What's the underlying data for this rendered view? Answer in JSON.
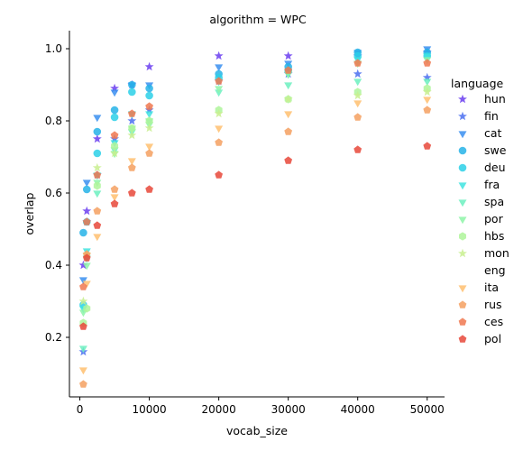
{
  "chart_data": {
    "type": "scatter",
    "facet_title": "algorithm = WPC",
    "xlabel": "vocab_size",
    "ylabel": "overlap",
    "xlim": [
      -1500,
      52500
    ],
    "ylim": [
      0.035,
      1.05
    ],
    "xticks": [
      0,
      10000,
      20000,
      30000,
      40000,
      50000
    ],
    "yticks": [
      0.2,
      0.4,
      0.6,
      0.8,
      1.0
    ],
    "xtick_labels": [
      "0",
      "10000",
      "20000",
      "30000",
      "40000",
      "50000"
    ],
    "ytick_labels": [
      "0.2",
      "0.4",
      "0.6",
      "0.8",
      "1.0"
    ],
    "grid": false,
    "legend_title": "language",
    "legend_position": "right",
    "series": [
      {
        "name": "hun",
        "marker": "star",
        "color": "#6a3df0",
        "x": [
          500,
          1000,
          2500,
          5000,
          7500,
          10000,
          20000,
          30000,
          40000,
          50000
        ],
        "y": [
          0.4,
          0.55,
          0.75,
          0.89,
          0.9,
          0.95,
          0.98,
          0.98,
          0.98,
          0.99
        ]
      },
      {
        "name": "fin",
        "marker": "star",
        "color": "#4a6ef0",
        "x": [
          500,
          1000,
          2500,
          5000,
          7500,
          10000,
          20000,
          30000,
          40000,
          50000
        ],
        "y": [
          0.16,
          0.52,
          0.65,
          0.75,
          0.8,
          0.83,
          0.91,
          0.93,
          0.93,
          0.92
        ]
      },
      {
        "name": "cat",
        "marker": "triangle-down",
        "color": "#3a8ff0",
        "x": [
          500,
          1000,
          2500,
          5000,
          7500,
          10000,
          20000,
          30000,
          40000,
          50000
        ],
        "y": [
          0.36,
          0.63,
          0.81,
          0.88,
          0.9,
          0.9,
          0.95,
          0.96,
          0.99,
          1.0
        ]
      },
      {
        "name": "swe",
        "marker": "circle",
        "color": "#26b3e8",
        "x": [
          500,
          1000,
          2500,
          5000,
          7500,
          10000,
          20000,
          30000,
          40000,
          50000
        ],
        "y": [
          0.49,
          0.61,
          0.77,
          0.83,
          0.9,
          0.89,
          0.93,
          0.95,
          0.99,
          0.99
        ]
      },
      {
        "name": "deu",
        "marker": "circle",
        "color": "#2cd0e8",
        "x": [
          500,
          1000,
          2500,
          5000,
          7500,
          10000,
          20000,
          30000,
          40000,
          50000
        ],
        "y": [
          0.29,
          0.52,
          0.71,
          0.81,
          0.88,
          0.87,
          0.92,
          0.94,
          0.98,
          0.98
        ]
      },
      {
        "name": "fra",
        "marker": "triangle-down",
        "color": "#40e4e0",
        "x": [
          500,
          1000,
          2500,
          5000,
          7500,
          10000,
          20000,
          30000,
          40000,
          50000
        ],
        "y": [
          0.28,
          0.44,
          0.65,
          0.74,
          0.82,
          0.82,
          0.91,
          0.93,
          0.97,
          0.98
        ]
      },
      {
        "name": "spa",
        "marker": "triangle-down",
        "color": "#6cf0c0",
        "x": [
          500,
          1000,
          2500,
          5000,
          7500,
          10000,
          20000,
          30000,
          40000,
          50000
        ],
        "y": [
          0.17,
          0.42,
          0.6,
          0.72,
          0.77,
          0.8,
          0.88,
          0.9,
          0.91,
          0.91
        ]
      },
      {
        "name": "por",
        "marker": "triangle-down",
        "color": "#8ef5a8",
        "x": [
          500,
          1000,
          2500,
          5000,
          7500,
          10000,
          20000,
          30000,
          40000,
          50000
        ],
        "y": [
          0.27,
          0.4,
          0.63,
          0.71,
          0.78,
          0.79,
          0.89,
          0.93,
          0.96,
          0.97
        ]
      },
      {
        "name": "hbs",
        "marker": "hexagon",
        "color": "#aef59a",
        "x": [
          500,
          1000,
          2500,
          5000,
          7500,
          10000,
          20000,
          30000,
          40000,
          50000
        ],
        "y": [
          0.24,
          0.28,
          0.62,
          0.73,
          0.78,
          0.8,
          0.83,
          0.86,
          0.88,
          0.89
        ]
      },
      {
        "name": "mon",
        "marker": "star",
        "color": "#c8ef8e",
        "x": [
          500,
          1000,
          2500,
          5000,
          7500,
          10000,
          20000,
          30000,
          40000,
          50000
        ],
        "y": [
          0.3,
          0.43,
          0.67,
          0.71,
          0.76,
          0.78,
          0.82,
          0.86,
          0.87,
          0.88
        ]
      },
      {
        "name": "eng",
        "marker": "none",
        "color": "#ffffff",
        "x": [],
        "y": []
      },
      {
        "name": "ita",
        "marker": "triangle-down",
        "color": "#ffc070",
        "x": [
          500,
          1000,
          2500,
          5000,
          7500,
          10000,
          20000,
          30000,
          40000,
          50000
        ],
        "y": [
          0.11,
          0.35,
          0.48,
          0.59,
          0.69,
          0.73,
          0.78,
          0.82,
          0.85,
          0.86
        ]
      },
      {
        "name": "rus",
        "marker": "pentagon",
        "color": "#f5a060",
        "x": [
          500,
          1000,
          2500,
          5000,
          7500,
          10000,
          20000,
          30000,
          40000,
          50000
        ],
        "y": [
          0.07,
          0.43,
          0.55,
          0.61,
          0.67,
          0.71,
          0.74,
          0.77,
          0.81,
          0.83
        ]
      },
      {
        "name": "ces",
        "marker": "pentagon",
        "color": "#f07850",
        "x": [
          500,
          1000,
          2500,
          5000,
          7500,
          10000,
          20000,
          30000,
          40000,
          50000
        ],
        "y": [
          0.34,
          0.52,
          0.65,
          0.76,
          0.82,
          0.84,
          0.91,
          0.94,
          0.96,
          0.96
        ]
      },
      {
        "name": "pol",
        "marker": "pentagon",
        "color": "#e8483a",
        "x": [
          500,
          1000,
          2500,
          5000,
          7500,
          10000,
          20000,
          30000,
          40000,
          50000
        ],
        "y": [
          0.23,
          0.42,
          0.51,
          0.57,
          0.6,
          0.61,
          0.65,
          0.69,
          0.72,
          0.73
        ]
      }
    ]
  }
}
